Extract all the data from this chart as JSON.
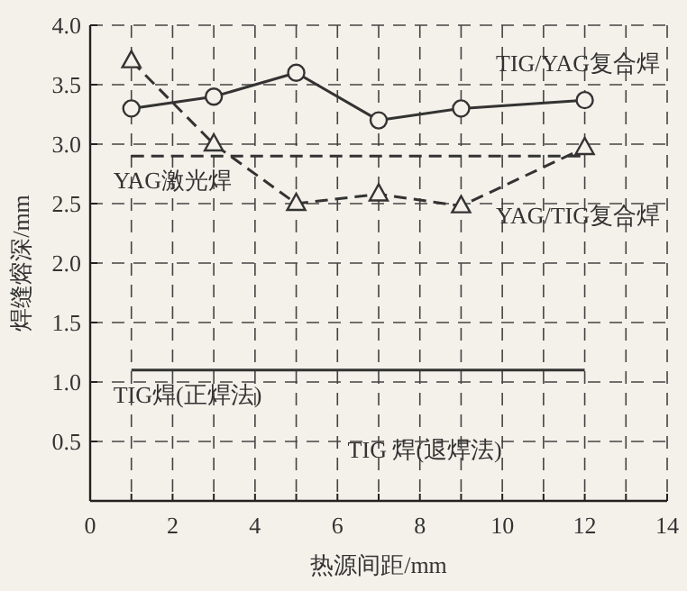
{
  "chart_data": {
    "type": "line",
    "xlabel": "热源间距/mm",
    "ylabel": "焊缝熔深/mm",
    "xlim": [
      0,
      14
    ],
    "ylim": [
      0,
      4
    ],
    "xticks": [
      0,
      {
        "value": 1,
        "label": null
      },
      2,
      {
        "value": 3,
        "label": null
      },
      4,
      {
        "value": 5,
        "label": null
      },
      6,
      {
        "value": 7,
        "label": null
      },
      8,
      {
        "value": 9,
        "label": null
      },
      10,
      {
        "value": 11,
        "label": null
      },
      12,
      {
        "value": 13,
        "label": null
      },
      14
    ],
    "yticks": [
      {
        "value": 0,
        "label": null
      },
      {
        "value": 0.5,
        "label": "0.5"
      },
      {
        "value": 1,
        "label": "1.0"
      },
      {
        "value": 1.5,
        "label": "1.5"
      },
      {
        "value": 2,
        "label": "2.0"
      },
      {
        "value": 2.5,
        "label": "2.5"
      },
      {
        "value": 3,
        "label": "3.0"
      },
      {
        "value": 3.5,
        "label": "3.5"
      },
      {
        "value": 4,
        "label": "4.0"
      }
    ],
    "grid": true,
    "series": [
      {
        "name": "TIG/YAG复合焊",
        "color": "#333333",
        "x": [
          1,
          3,
          5,
          7,
          9,
          12
        ],
        "values": [
          3.3,
          3.4,
          3.6,
          3.2,
          3.3,
          3.37
        ],
        "marker": "circle",
        "line_style": "solid"
      },
      {
        "name": "YAG/TIG复合焊",
        "color": "#333333",
        "x": [
          1,
          3,
          5,
          7,
          9,
          12
        ],
        "values": [
          3.7,
          3.0,
          2.5,
          2.58,
          2.48,
          2.97
        ],
        "marker": "triangle",
        "line_style": "dashed"
      },
      {
        "name": "YAG激光焊",
        "color": "#333333",
        "x": [
          1,
          12
        ],
        "values": [
          2.9,
          2.9
        ],
        "marker": "none",
        "line_style": "dashed"
      },
      {
        "name": "TIG焊(正焊法)",
        "color": "#333333",
        "x": [
          1,
          12
        ],
        "values": [
          1.1,
          1.1
        ],
        "marker": "none",
        "line_style": "solid"
      }
    ],
    "annotations": [
      "TIG 焊(退焊法)"
    ]
  }
}
